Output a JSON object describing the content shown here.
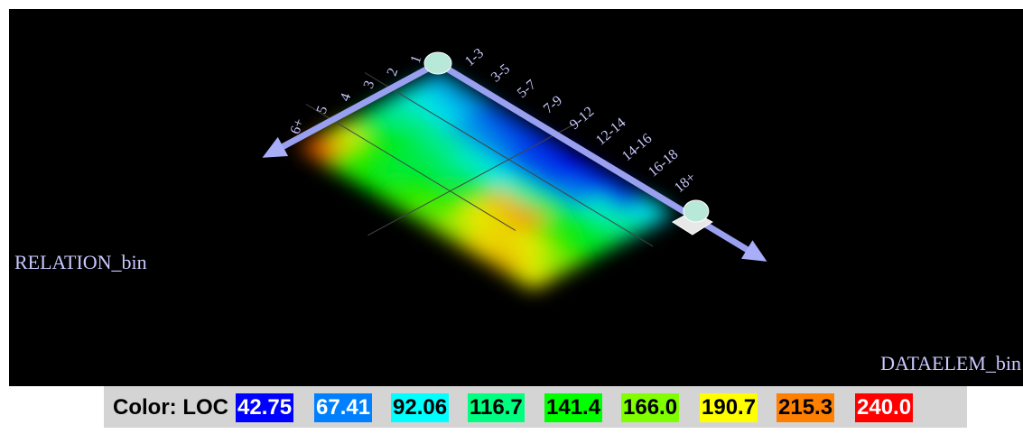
{
  "chart_data": {
    "type": "heatmap",
    "x_axis": {
      "title": "DATAELEM_bin",
      "categories": [
        "1-3",
        "3-5",
        "5-7",
        "7-9",
        "9-12",
        "12-14",
        "14-16",
        "16-18",
        "18+"
      ]
    },
    "y_axis": {
      "title": "RELATION_bin",
      "categories": [
        "1",
        "2",
        "3",
        "4",
        "5",
        "6+"
      ]
    },
    "legend": {
      "label": "Color: LOC",
      "levels": [
        {
          "value": "42.75",
          "color": "#0000ff",
          "text_color": "#ffffff"
        },
        {
          "value": "67.41",
          "color": "#0080ff",
          "text_color": "#ffffff"
        },
        {
          "value": "92.06",
          "color": "#00ffff",
          "text_color": "#000000"
        },
        {
          "value": "116.7",
          "color": "#00ff80",
          "text_color": "#000000"
        },
        {
          "value": "141.4",
          "color": "#00ff00",
          "text_color": "#000000"
        },
        {
          "value": "166.0",
          "color": "#80ff00",
          "text_color": "#000000"
        },
        {
          "value": "190.7",
          "color": "#ffff00",
          "text_color": "#000000"
        },
        {
          "value": "215.3",
          "color": "#ff8000",
          "text_color": "#000000"
        },
        {
          "value": "240.0",
          "color": "#ff0000",
          "text_color": "#ffffff"
        }
      ]
    },
    "cells": [
      [
        80,
        75,
        60,
        55,
        50,
        45,
        50,
        55,
        90
      ],
      [
        95,
        90,
        75,
        70,
        60,
        60,
        70,
        100,
        110
      ],
      [
        110,
        115,
        110,
        100,
        95,
        110,
        125,
        135,
        130
      ],
      [
        130,
        135,
        125,
        120,
        130,
        200,
        205,
        150,
        140
      ],
      [
        185,
        145,
        130,
        140,
        150,
        190,
        195,
        190,
        170
      ],
      [
        220,
        150,
        140,
        150,
        160,
        175,
        195,
        200,
        190
      ]
    ]
  }
}
